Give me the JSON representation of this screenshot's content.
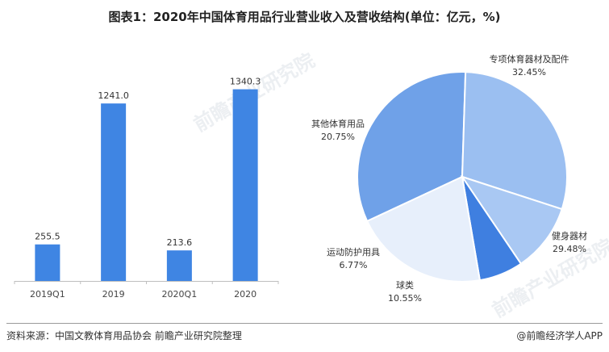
{
  "title": "图表1：2020年中国体育用品行业营业收入及营收结构(单位：亿元，%)",
  "source": "资料来源：中国文教体育用品协会 前瞻产业研究院整理",
  "brand": "@前瞻经济学人APP",
  "watermark": "前瞻产业研究院",
  "colors": {
    "bar": "#3f85e3",
    "axis": "#bfbfbf",
    "pie": [
      "#6fa1e8",
      "#9bbff1",
      "#a9c8f3",
      "#3f7fe0",
      "#e7effb"
    ],
    "slice_border": "#ffffff"
  },
  "chart_data": [
    {
      "type": "bar",
      "categories": [
        "2019Q1",
        "2019",
        "2020Q1",
        "2020"
      ],
      "values": [
        255.5,
        1241.0,
        213.6,
        1340.3
      ],
      "labels": [
        "255.5",
        "1241.0",
        "213.6",
        "1340.3"
      ],
      "ylim": [
        0,
        1400
      ]
    },
    {
      "type": "pie",
      "slices": [
        {
          "label": "专项体育器材及配件",
          "value": 32.45,
          "display": "32.45%"
        },
        {
          "label": "健身器材",
          "value": 29.48,
          "display": "29.48%"
        },
        {
          "label": "球类",
          "value": 10.55,
          "display": "10.55%"
        },
        {
          "label": "运动防护用具",
          "value": 6.77,
          "display": "6.77%"
        },
        {
          "label": "其他体育用品",
          "value": 20.75,
          "display": "20.75%"
        }
      ]
    }
  ]
}
